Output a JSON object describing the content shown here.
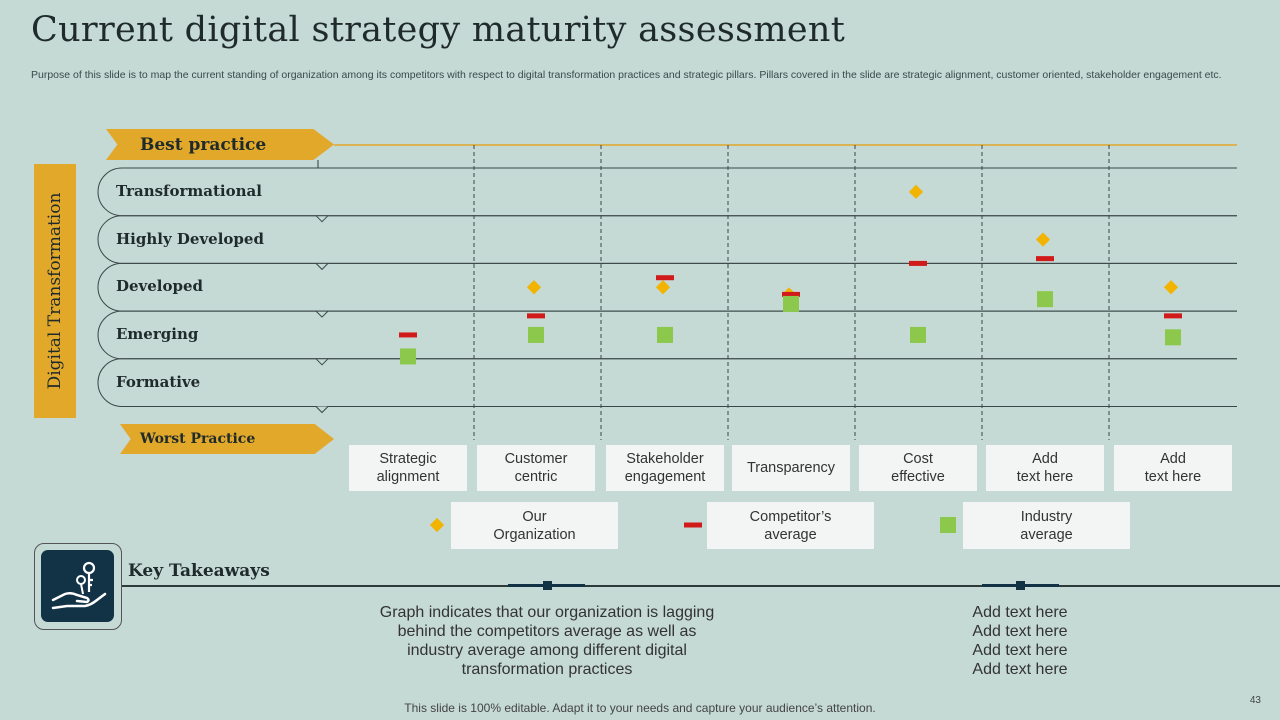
{
  "title": "Current digital strategy maturity assessment",
  "subtitle": "Purpose of this slide is to map the current standing of organization among its competitors with respect to digital transformation practices and strategic pillars. Pillars covered in the slide are strategic alignment, customer oriented, stakeholder engagement etc.",
  "axis_band_label": "Digital Transformation",
  "best_label": "Best practice",
  "worst_label": "Worst Practice",
  "chart_data": {
    "type": "scatter",
    "title": "Current digital strategy maturity assessment",
    "ylabel": "Digital Transformation",
    "levels": [
      "Transformational",
      "Highly Developed",
      "Developed",
      "Emerging",
      "Formative"
    ],
    "ylim": [
      1,
      5
    ],
    "level_values": {
      "Transformational": 5,
      "Highly Developed": 4,
      "Developed": 3,
      "Emerging": 2,
      "Formative": 1
    },
    "categories": [
      "Strategic\nalignment",
      "Customer\ncentric",
      "Stakeholder\nengagement",
      "Transparency",
      "Cost\neffective",
      "Add\ntext here",
      "Add\ntext here"
    ],
    "series": [
      {
        "name": "Our\nOrganization",
        "marker": "diamond",
        "color": "#f2b400",
        "values": [
          null,
          3.0,
          3.0,
          2.85,
          5.0,
          4.0,
          3.0
        ]
      },
      {
        "name": "Competitor’s\naverage",
        "marker": "dash",
        "color": "#d11a1a",
        "values": [
          2.0,
          2.4,
          3.2,
          2.85,
          3.5,
          3.6,
          2.4
        ]
      },
      {
        "name": "Industry\naverage",
        "marker": "square",
        "color": "#8cc84b",
        "values": [
          1.55,
          2.0,
          2.0,
          2.65,
          2.0,
          2.75,
          1.95
        ]
      }
    ]
  },
  "takeaways": {
    "title": "Key Takeaways",
    "left_text": "Graph indicates that our organization is lagging behind the competitors average as well as industry average among different digital transformation practices",
    "right_lines": [
      "Add text here",
      "Add text here",
      "Add text here",
      "Add text here"
    ]
  },
  "footer": "This slide is 100% editable. Adapt it to your needs and capture your audience’s attention.",
  "page_number": "43",
  "colors": {
    "background": "#c5d9d5",
    "accent": "#e2a82a",
    "icon_bg": "#123246"
  }
}
